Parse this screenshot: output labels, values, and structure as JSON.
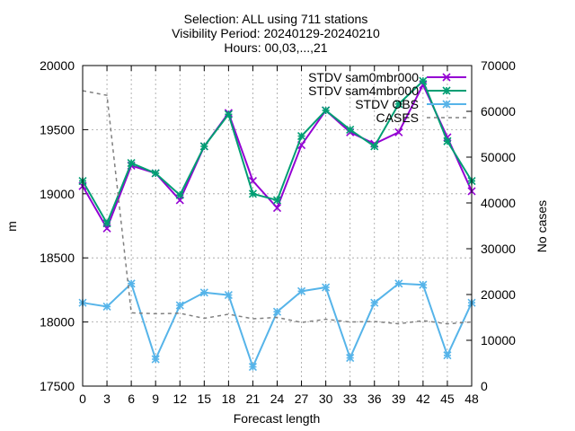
{
  "chart_data": {
    "type": "line",
    "title_lines": [
      "Selection: ALL using   711 stations",
      "Visibility   Period: 20240129-20240210",
      "Hours: 00,03,...,21"
    ],
    "xlabel": "Forecast length",
    "ylabel": "m",
    "y2label": "No cases",
    "x": [
      0,
      3,
      6,
      9,
      12,
      15,
      18,
      21,
      24,
      27,
      30,
      33,
      36,
      39,
      42,
      45,
      48
    ],
    "xlim": [
      0,
      48
    ],
    "ylim": [
      17500,
      20000
    ],
    "y2lim": [
      0,
      70000
    ],
    "x_ticks": [
      "0",
      "3",
      "6",
      "9",
      "12",
      "15",
      "18",
      "21",
      "24",
      "27",
      "30",
      "33",
      "36",
      "39",
      "42",
      "45",
      "48"
    ],
    "y_ticks": [
      "17500",
      "18000",
      "18500",
      "19000",
      "19500",
      "20000"
    ],
    "y2_ticks": [
      "0",
      "10000",
      "20000",
      "30000",
      "40000",
      "50000",
      "60000",
      "70000"
    ],
    "grid": true,
    "legend_position": "top-right",
    "series": [
      {
        "name": "STDV sam0mbr000",
        "axis": "y",
        "color": "#9400d3",
        "marker": "x",
        "values": [
          19060,
          18730,
          19220,
          19160,
          18950,
          19370,
          19630,
          19100,
          18890,
          19380,
          19650,
          19480,
          19390,
          19480,
          19850,
          19440,
          19020
        ]
      },
      {
        "name": "STDV sam4mbr000",
        "axis": "y",
        "color": "#009e73",
        "marker": "star",
        "values": [
          19100,
          18770,
          19240,
          19160,
          18990,
          19370,
          19620,
          19000,
          18950,
          19450,
          19650,
          19500,
          19370,
          19700,
          19880,
          19410,
          19100
        ]
      },
      {
        "name": "STDV OBS",
        "axis": "y",
        "color": "#56b4e9",
        "marker": "star",
        "values": [
          18150,
          18120,
          18300,
          17710,
          18130,
          18230,
          18210,
          17650,
          18080,
          18240,
          18270,
          17720,
          18150,
          18300,
          18290,
          17740,
          18150
        ]
      },
      {
        "name": "CASES",
        "axis": "y2",
        "color": "#808080",
        "marker": "none",
        "dashed": true,
        "values": [
          64500,
          63500,
          16000,
          15800,
          15900,
          14800,
          15700,
          14700,
          15000,
          13900,
          14600,
          14000,
          14100,
          13600,
          14300,
          13600,
          14000
        ]
      }
    ]
  }
}
